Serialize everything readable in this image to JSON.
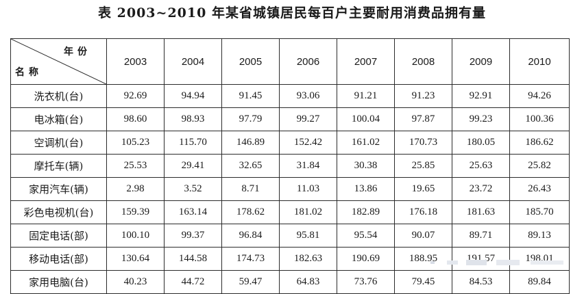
{
  "title": "表 2003~2010 年某省城镇居民每百户主要耐用消费品拥有量",
  "table": {
    "corner_top": "年份",
    "corner_bottom": "名称",
    "years": [
      "2003",
      "2004",
      "2005",
      "2006",
      "2007",
      "2008",
      "2009",
      "2010"
    ],
    "rows": [
      {
        "name": "洗衣机(台)",
        "values": [
          "92.69",
          "94.94",
          "91.45",
          "93.06",
          "91.21",
          "91.23",
          "92.91",
          "94.26"
        ]
      },
      {
        "name": "电冰箱(台)",
        "values": [
          "98.60",
          "98.93",
          "97.79",
          "99.27",
          "100.04",
          "97.87",
          "99.23",
          "100.36"
        ]
      },
      {
        "name": "空调机(台)",
        "values": [
          "105.23",
          "115.70",
          "146.89",
          "152.42",
          "161.02",
          "170.73",
          "180.05",
          "186.62"
        ]
      },
      {
        "name": "摩托车(辆)",
        "values": [
          "25.53",
          "29.41",
          "32.65",
          "31.84",
          "30.38",
          "25.85",
          "25.63",
          "25.82"
        ]
      },
      {
        "name": "家用汽车(辆)",
        "values": [
          "2.98",
          "3.52",
          "8.71",
          "11.03",
          "13.86",
          "19.65",
          "23.72",
          "26.43"
        ]
      },
      {
        "name": "彩色电视机(台)",
        "values": [
          "159.39",
          "163.14",
          "178.62",
          "181.02",
          "182.89",
          "176.18",
          "181.63",
          "185.70"
        ]
      },
      {
        "name": "固定电话(部)",
        "values": [
          "100.10",
          "99.37",
          "96.84",
          "95.81",
          "95.54",
          "90.07",
          "89.71",
          "89.13"
        ]
      },
      {
        "name": "移动电话(部)",
        "values": [
          "130.64",
          "144.58",
          "174.73",
          "182.63",
          "190.69",
          "188.95",
          "191.57",
          "198.01"
        ]
      },
      {
        "name": "家用电脑(台)",
        "values": [
          "40.23",
          "44.72",
          "59.47",
          "64.83",
          "73.76",
          "79.45",
          "84.53",
          "89.84"
        ]
      }
    ]
  }
}
